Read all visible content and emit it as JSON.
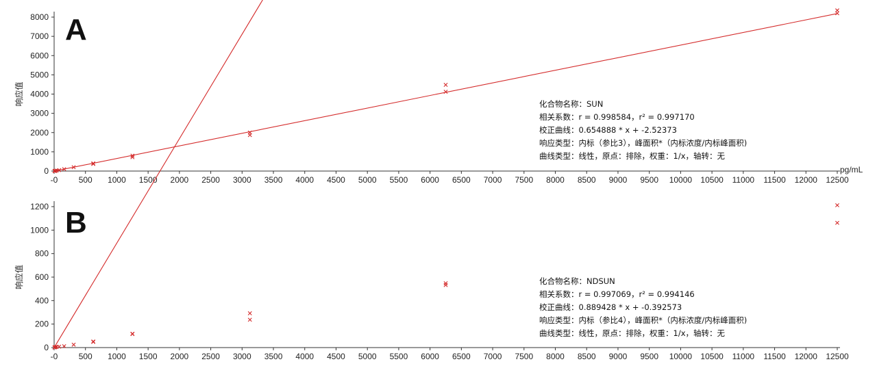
{
  "chart_data": [
    {
      "type": "scatter",
      "panel_label": "A",
      "ylabel": "响应值",
      "xunit": "pg/mL",
      "xlim": [
        0,
        12500
      ],
      "ylim": [
        0,
        8000
      ],
      "xticks": [
        0,
        500,
        1000,
        1500,
        2000,
        2500,
        3000,
        3500,
        4000,
        4500,
        5000,
        5500,
        6000,
        6500,
        7000,
        7500,
        8000,
        8500,
        9000,
        9500,
        10000,
        10500,
        11000,
        11500,
        12000,
        12500
      ],
      "yticks": [
        0,
        1000,
        2000,
        3000,
        4000,
        5000,
        6000,
        7000,
        8000
      ],
      "fit": {
        "slope": 0.654888,
        "intercept": -2.52373
      },
      "points": [
        {
          "x": 5,
          "y": 3
        },
        {
          "x": 10,
          "y": 5
        },
        {
          "x": 20,
          "y": 10
        },
        {
          "x": 40,
          "y": 25
        },
        {
          "x": 80,
          "y": 50
        },
        {
          "x": 160,
          "y": 100
        },
        {
          "x": 312,
          "y": 200
        },
        {
          "x": 625,
          "y": 400
        },
        {
          "x": 625,
          "y": 370
        },
        {
          "x": 1250,
          "y": 800
        },
        {
          "x": 1250,
          "y": 720
        },
        {
          "x": 3125,
          "y": 2000
        },
        {
          "x": 3125,
          "y": 1870
        },
        {
          "x": 6250,
          "y": 4480
        },
        {
          "x": 6250,
          "y": 4120
        },
        {
          "x": 12500,
          "y": 8350
        },
        {
          "x": 12500,
          "y": 8200
        }
      ],
      "info_lines": [
        "化合物名称：SUN",
        "相关系数：r = 0.998584，r² = 0.997170",
        "校正曲线：0.654888 * x + -2.52373",
        "响应类型：内标（参比3），峰面积*（内标浓度/内标峰面积)",
        "曲线类型：线性，原点：排除，权重：1/x，轴转：无"
      ]
    },
    {
      "type": "scatter",
      "panel_label": "B",
      "ylabel": "响应值",
      "xunit": "",
      "xlim": [
        0,
        12500
      ],
      "ylim": [
        0,
        1200
      ],
      "xticks": [
        0,
        500,
        1000,
        1500,
        2000,
        2500,
        3000,
        3500,
        4000,
        4500,
        5000,
        5500,
        6000,
        6500,
        7000,
        7500,
        8000,
        8500,
        9000,
        9500,
        10000,
        10500,
        11000,
        11500,
        12000,
        12500
      ],
      "yticks": [
        0,
        200,
        400,
        600,
        800,
        1000,
        1200
      ],
      "fit": {
        "slope": 0.889428,
        "intercept": -0.392573
      },
      "points": [
        {
          "x": 5,
          "y": 1
        },
        {
          "x": 10,
          "y": 2
        },
        {
          "x": 20,
          "y": 4
        },
        {
          "x": 40,
          "y": 6
        },
        {
          "x": 80,
          "y": 8
        },
        {
          "x": 160,
          "y": 12
        },
        {
          "x": 312,
          "y": 25
        },
        {
          "x": 625,
          "y": 52
        },
        {
          "x": 625,
          "y": 48
        },
        {
          "x": 1250,
          "y": 118
        },
        {
          "x": 1250,
          "y": 115
        },
        {
          "x": 3125,
          "y": 292
        },
        {
          "x": 3125,
          "y": 237
        },
        {
          "x": 6250,
          "y": 548
        },
        {
          "x": 6250,
          "y": 532
        },
        {
          "x": 12500,
          "y": 1212
        },
        {
          "x": 12500,
          "y": 1062
        }
      ],
      "info_lines": [
        "化合物名称：NDSUN",
        "相关系数：r = 0.997069，r² = 0.994146",
        "校正曲线：0.889428 * x + -0.392573",
        "响应类型：内标（参比4），峰面积*（内标浓度/内标峰面积)",
        "曲线类型：线性，原点：排除，权重：1/x，轴转：无"
      ]
    }
  ],
  "colors": {
    "fit_line": "#d42a2a",
    "marker": "#d42a2a",
    "axis": "#333333"
  }
}
